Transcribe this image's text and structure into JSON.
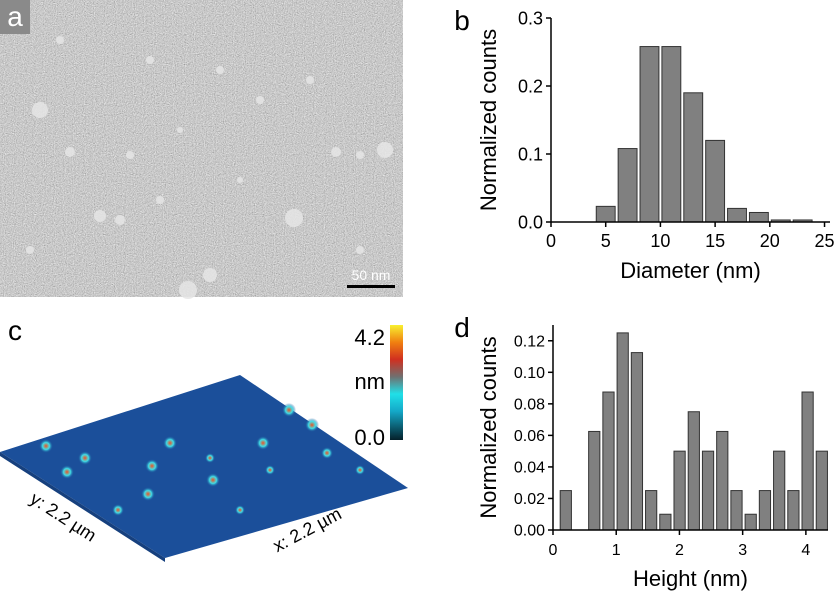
{
  "panels": {
    "a": {
      "label": "a",
      "scale_bar": "50 nm"
    },
    "c": {
      "label": "c",
      "colorbar_max": "4.2",
      "colorbar_unit": "nm",
      "colorbar_min": "0.0",
      "y_label": "y: 2.2 µm",
      "x_label": "x: 2.2 µm"
    }
  },
  "chart_data": [
    {
      "type": "histogram",
      "label": "b",
      "ylabel": "Normalized counts",
      "xlabel": "Diameter (nm)",
      "bins": [
        4,
        6,
        8,
        10,
        12,
        14,
        16,
        18,
        20,
        22,
        24
      ],
      "values": [
        0.023,
        0.108,
        0.258,
        0.258,
        0.19,
        0.12,
        0.02,
        0.014,
        0.003,
        0.003
      ],
      "color": "#808080",
      "xlim": [
        0,
        25.5
      ],
      "xticks": [
        0,
        5,
        10,
        15,
        20,
        25
      ],
      "ylim": [
        0,
        0.3
      ],
      "yticks": [
        {
          "value": 0,
          "label": "0.0"
        },
        0.1,
        0.2,
        0.3
      ]
    },
    {
      "type": "histogram",
      "label": "d",
      "ylabel": "Normalized counts",
      "xlabel": "Height (nm)",
      "bins": [
        0.09,
        0.315,
        0.54,
        0.765,
        0.99,
        1.215,
        1.44,
        1.665,
        1.89,
        2.115,
        2.34,
        2.565,
        2.79,
        3.015,
        3.24,
        3.465,
        3.69,
        3.915,
        4.14,
        4.365
      ],
      "values": [
        0.025,
        0,
        0.0625,
        0.0875,
        0.125,
        0.1125,
        0.025,
        0.01,
        0.05,
        0.075,
        0.05,
        0.0625,
        0.025,
        0.01,
        0.025,
        0.05,
        0.025,
        0.0875,
        0.05
      ],
      "color": "#808080",
      "xlim": [
        0,
        4.35
      ],
      "xticks": [
        0,
        1,
        2,
        3,
        4
      ],
      "ylim": [
        0,
        0.13
      ],
      "yticks": [
        {
          "value": 0,
          "label": "0.00"
        },
        0.02,
        0.04,
        0.06,
        0.08,
        {
          "value": 0.1,
          "label": "0.10"
        },
        0.12
      ]
    }
  ]
}
